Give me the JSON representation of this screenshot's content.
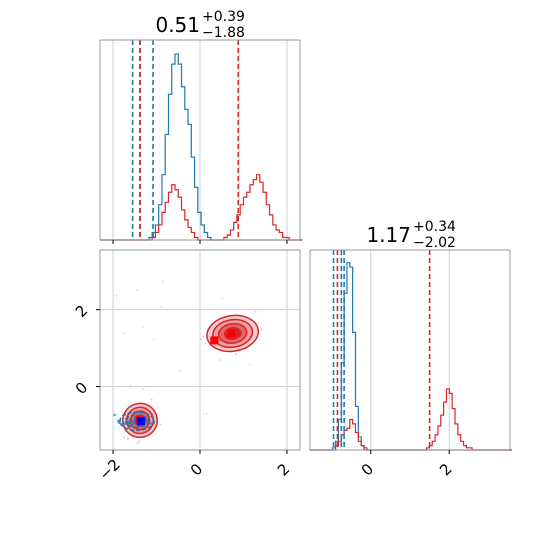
{
  "chart_data": {
    "type": "corner",
    "parameters": [
      "",
      ""
    ],
    "colors": {
      "series_a": "#d62728",
      "series_b": "#1f77b4"
    },
    "grid": true,
    "panel_titles": [
      {
        "main": "0.51",
        "upper": "+0.39",
        "lower": "−1.88"
      },
      {
        "main": "1.17",
        "upper": "+0.34",
        "lower": "−2.02"
      }
    ],
    "x_range": [
      -2.3,
      2.3
    ],
    "y_range": [
      -1.65,
      3.55
    ],
    "diag2_range": [
      -1.55,
      3.55
    ],
    "x_ticks": [
      {
        "value": -2,
        "label": "−2"
      },
      {
        "value": 0,
        "label": "0"
      },
      {
        "value": 2,
        "label": "2"
      }
    ],
    "y_ticks": [
      {
        "value": 0,
        "label": "0"
      },
      {
        "value": 2,
        "label": "2"
      }
    ],
    "diag2_ticks": [
      {
        "value": 0,
        "label": "0"
      },
      {
        "value": 2,
        "label": "2"
      }
    ],
    "diag1": {
      "bin_start": -2.3,
      "bin_width": 0.075,
      "series_b_counts": [
        0,
        0,
        0,
        0,
        0,
        0,
        0,
        0,
        0,
        0,
        0,
        0,
        0,
        0,
        0,
        1,
        3,
        6,
        14,
        26,
        42,
        58,
        70,
        74,
        70,
        61,
        52,
        46,
        33,
        21,
        11,
        6,
        3,
        1,
        0,
        0,
        0,
        0,
        0,
        0,
        0,
        0,
        0,
        0,
        0,
        0,
        0,
        0,
        0,
        0,
        0,
        0,
        0,
        0,
        0,
        0,
        0,
        0,
        0,
        0,
        0,
        0
      ],
      "series_a_counts": [
        0,
        0,
        0,
        0,
        0,
        0,
        0,
        0,
        0,
        0,
        0,
        0,
        0,
        0,
        0,
        0,
        1,
        3,
        6,
        11,
        15,
        19,
        22,
        20,
        17,
        12,
        8,
        5,
        3,
        1,
        0,
        0,
        0,
        0,
        0,
        0,
        0,
        0,
        1,
        2,
        4,
        7,
        10,
        14,
        17,
        19,
        22,
        24,
        26,
        23,
        19,
        14,
        10,
        6,
        4,
        3,
        1,
        1,
        0,
        0,
        0,
        0
      ],
      "ymax": 78,
      "series_b_lines": [
        -1.55,
        -1.38,
        -1.08
      ],
      "series_a_lines": [
        -1.38,
        0.88
      ]
    },
    "diag2": {
      "bin_start": -1.55,
      "bin_width": 0.0725,
      "series_b_counts": [
        0,
        0,
        0,
        0,
        0,
        0,
        0,
        0,
        1,
        4,
        14,
        40,
        72,
        86,
        84,
        54,
        20,
        6,
        2,
        0,
        0,
        0,
        0,
        0,
        0,
        0,
        0,
        0,
        0,
        0,
        0,
        0,
        0,
        0,
        0,
        0,
        0,
        0,
        0,
        0,
        0,
        0,
        0,
        0,
        0,
        0,
        0,
        0,
        0,
        0,
        0,
        0,
        0,
        0,
        0,
        0,
        0,
        0,
        0,
        0,
        0,
        0,
        0,
        0,
        0,
        0,
        0,
        0,
        0,
        0,
        0
      ],
      "series_a_counts": [
        0,
        0,
        0,
        0,
        0,
        0,
        0,
        0,
        0,
        2,
        4,
        7,
        9,
        10,
        14,
        12,
        8,
        4,
        2,
        1,
        0,
        0,
        0,
        0,
        0,
        0,
        0,
        0,
        0,
        0,
        0,
        0,
        0,
        0,
        0,
        0,
        0,
        0,
        0,
        0,
        0,
        1,
        2,
        4,
        7,
        11,
        16,
        22,
        28,
        26,
        19,
        12,
        7,
        4,
        2,
        1,
        1,
        0,
        0,
        0,
        0,
        0,
        0,
        0,
        0,
        0,
        0,
        0,
        0,
        0,
        0
      ],
      "ymax": 90,
      "series_b_lines": [
        -0.95,
        -0.75,
        -0.68
      ],
      "series_a_lines": [
        -0.85,
        1.5
      ]
    },
    "joint": {
      "series_a_modes": [
        {
          "cx": -1.38,
          "cy": -0.88,
          "sx": 0.18,
          "sy": 0.2,
          "rot": 0.2
        },
        {
          "cx": 0.75,
          "cy": 1.38,
          "sx": 0.27,
          "sy": 0.21,
          "rot": 0.15
        }
      ],
      "series_b_modes": [
        {
          "cx": -1.45,
          "cy": -0.9,
          "sx": 0.22,
          "sy": 0.06,
          "rot": 0.0
        }
      ],
      "series_a_markers": [
        [
          -1.38,
          -0.88
        ],
        [
          0.72,
          1.38
        ],
        [
          0.33,
          1.2
        ]
      ],
      "series_b_markers": [
        [
          -1.36,
          -0.9
        ]
      ]
    }
  }
}
